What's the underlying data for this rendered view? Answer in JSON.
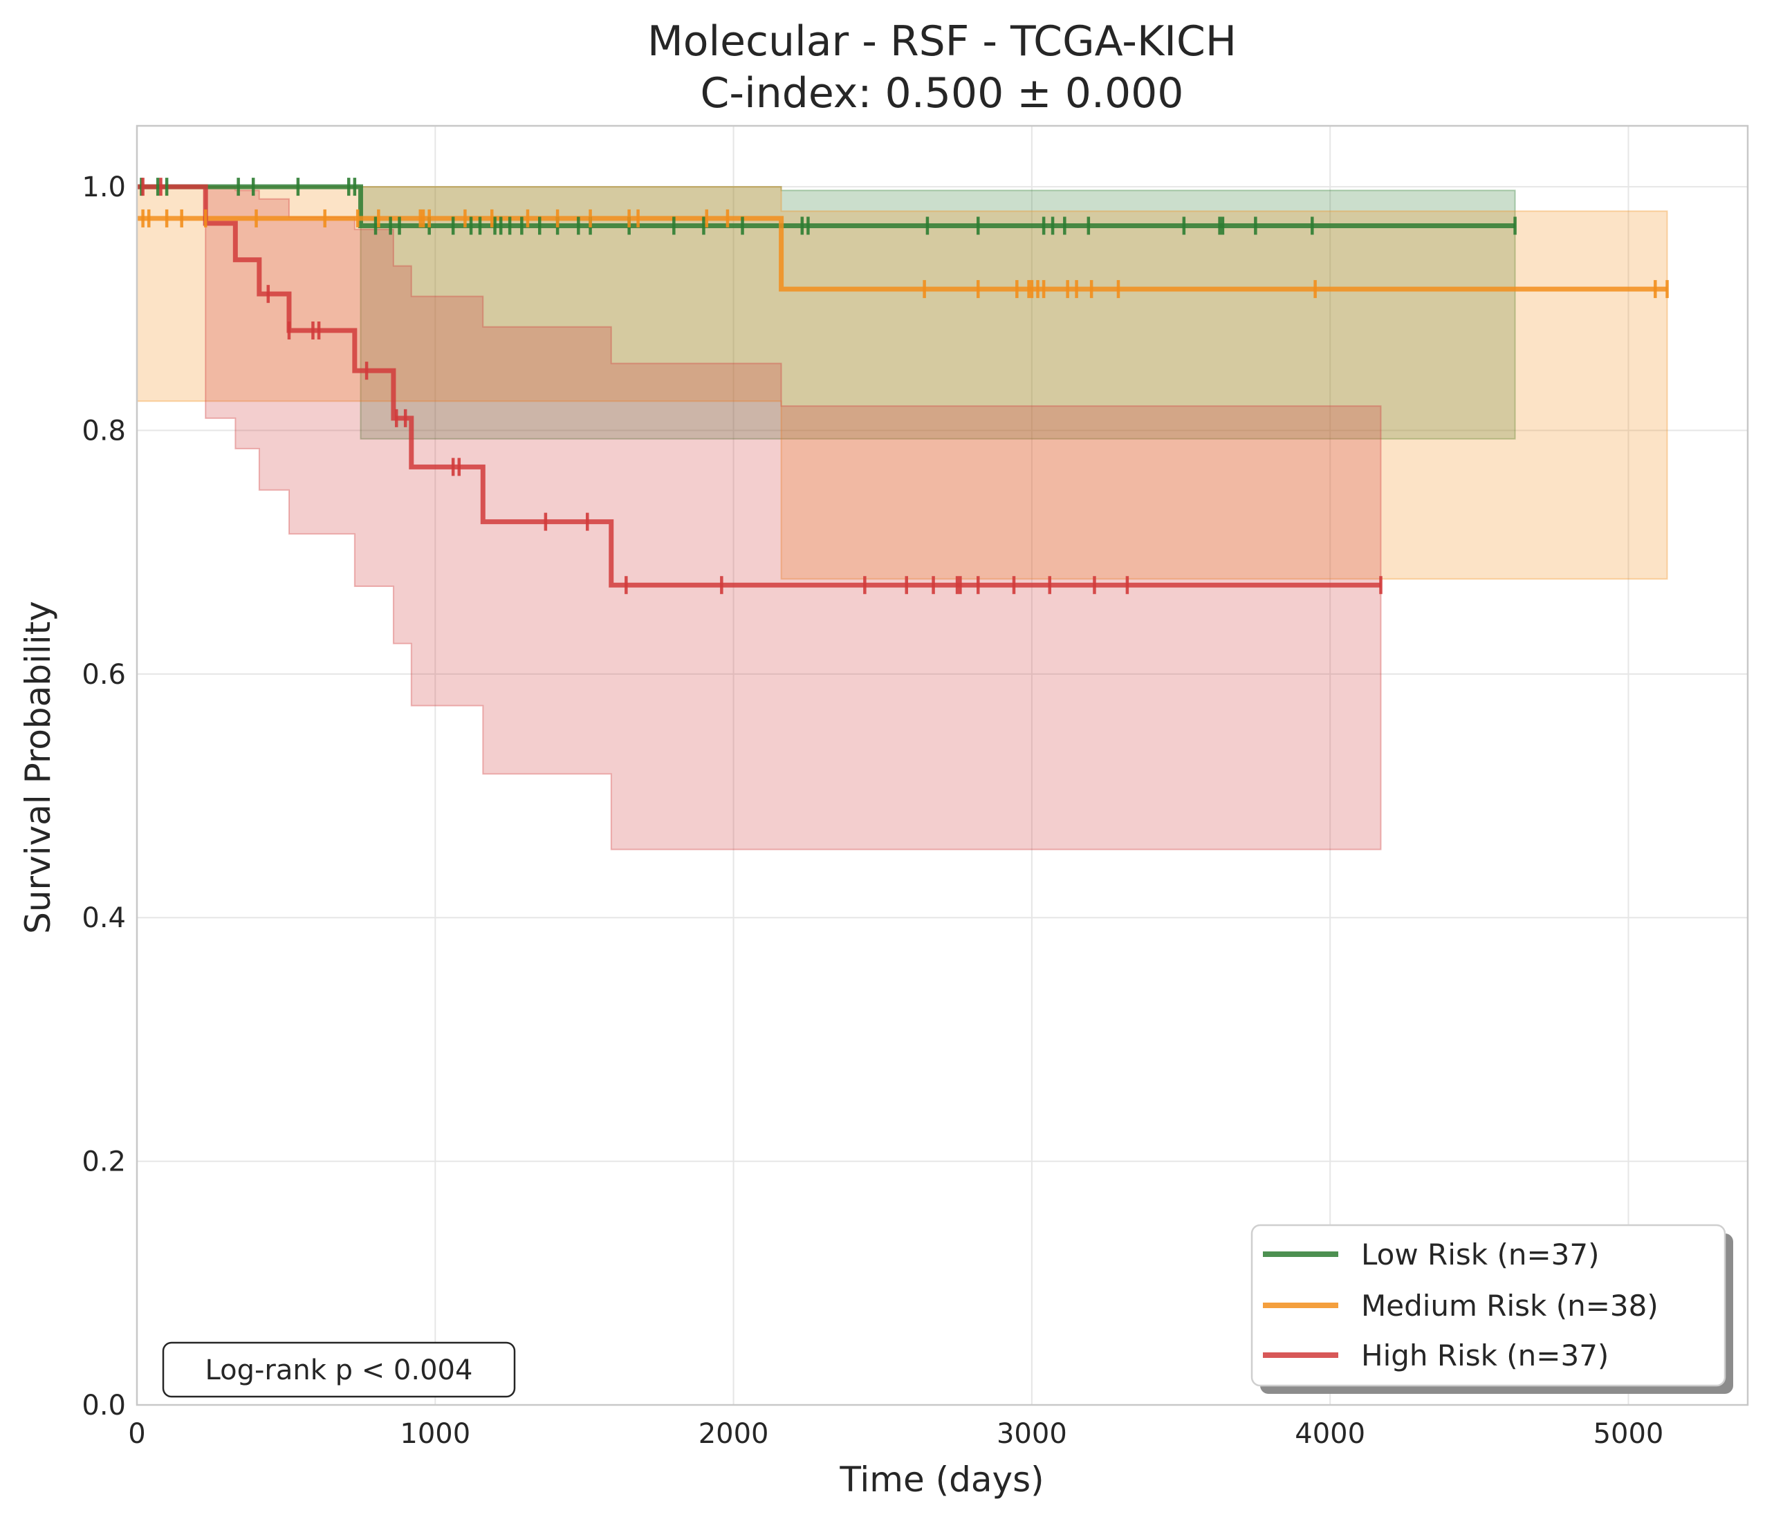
{
  "chart_data": {
    "type": "line",
    "title": "Molecular - RSF - TCGA-KICH",
    "subtitle": "C-index: 0.500 ± 0.000",
    "xlabel": "Time (days)",
    "ylabel": "Survival Probability",
    "xlim": [
      0,
      5400
    ],
    "ylim": [
      0,
      1.05
    ],
    "xticks": [
      0,
      1000,
      2000,
      3000,
      4000,
      5000
    ],
    "xtick_labels": [
      "0",
      "1000",
      "2000",
      "3000",
      "4000",
      "5000"
    ],
    "yticks": [
      0,
      0.2,
      0.4,
      0.6,
      0.8,
      1.0
    ],
    "ytick_labels": [
      "0.0",
      "0.2",
      "0.4",
      "0.6",
      "0.8",
      "1.0"
    ],
    "grid": true,
    "legend_position": "bottom-right",
    "annotation": "Log-rank p < 0.004",
    "series": [
      {
        "name": "Low Risk (n=37)",
        "color": "#2e7d32",
        "steps": [
          [
            0,
            1.0
          ],
          [
            750,
            1.0
          ],
          [
            750,
            0.968
          ],
          [
            4620,
            0.968
          ]
        ],
        "ci_upper": [
          [
            0,
            1.0
          ],
          [
            2160,
            1.0
          ],
          [
            2160,
            0.997
          ],
          [
            4620,
            0.997
          ]
        ],
        "ci_lower": [
          [
            0,
            1.0
          ],
          [
            750,
            1.0
          ],
          [
            750,
            0.793
          ],
          [
            4620,
            0.793
          ]
        ],
        "censor_x": [
          15,
          70,
          100,
          340,
          390,
          540,
          710,
          730,
          800,
          850,
          880,
          980,
          1060,
          1120,
          1150,
          1200,
          1220,
          1250,
          1290,
          1350,
          1410,
          1480,
          1520,
          1650,
          1800,
          1900,
          2030,
          2230,
          2250,
          2650,
          2820,
          3040,
          3070,
          3110,
          3190,
          3510,
          3630,
          3640,
          3750,
          3940,
          4620
        ]
      },
      {
        "name": "Medium Risk (n=38)",
        "color": "#f28e1c",
        "steps": [
          [
            0,
            0.974
          ],
          [
            2160,
            0.974
          ],
          [
            2160,
            0.916
          ],
          [
            5130,
            0.916
          ]
        ],
        "ci_upper": [
          [
            0,
            1.0
          ],
          [
            2160,
            1.0
          ],
          [
            2160,
            0.98
          ],
          [
            5130,
            0.98
          ]
        ],
        "ci_lower": [
          [
            0,
            0.824
          ],
          [
            2160,
            0.824
          ],
          [
            2160,
            0.678
          ],
          [
            5130,
            0.678
          ]
        ],
        "censor_x": [
          20,
          40,
          100,
          150,
          230,
          400,
          630,
          740,
          810,
          950,
          960,
          980,
          1100,
          1190,
          1310,
          1410,
          1520,
          1650,
          1680,
          1910,
          1980,
          2640,
          2820,
          2950,
          2990,
          3000,
          3020,
          3040,
          3120,
          3150,
          3200,
          3290,
          3950,
          5090,
          5130
        ]
      },
      {
        "name": "High Risk (n=37)",
        "color": "#d13b3b",
        "steps": [
          [
            0,
            1.0
          ],
          [
            230,
            1.0
          ],
          [
            230,
            0.97
          ],
          [
            330,
            0.97
          ],
          [
            330,
            0.94
          ],
          [
            410,
            0.94
          ],
          [
            410,
            0.912
          ],
          [
            510,
            0.912
          ],
          [
            510,
            0.882
          ],
          [
            730,
            0.882
          ],
          [
            730,
            0.849
          ],
          [
            860,
            0.849
          ],
          [
            860,
            0.81
          ],
          [
            920,
            0.81
          ],
          [
            920,
            0.77
          ],
          [
            1160,
            0.77
          ],
          [
            1160,
            0.725
          ],
          [
            1590,
            0.725
          ],
          [
            1590,
            0.673
          ],
          [
            4170,
            0.673
          ]
        ],
        "ci_upper": [
          [
            0,
            1.0
          ],
          [
            330,
            1.0
          ],
          [
            330,
            0.997
          ],
          [
            410,
            0.997
          ],
          [
            410,
            0.99
          ],
          [
            510,
            0.99
          ],
          [
            510,
            0.975
          ],
          [
            730,
            0.975
          ],
          [
            730,
            0.965
          ],
          [
            860,
            0.965
          ],
          [
            860,
            0.935
          ],
          [
            920,
            0.935
          ],
          [
            920,
            0.91
          ],
          [
            1160,
            0.91
          ],
          [
            1160,
            0.885
          ],
          [
            1590,
            0.885
          ],
          [
            1590,
            0.855
          ],
          [
            2160,
            0.855
          ],
          [
            2160,
            0.82
          ],
          [
            4170,
            0.82
          ]
        ],
        "ci_lower": [
          [
            0,
            1.0
          ],
          [
            230,
            1.0
          ],
          [
            230,
            0.81
          ],
          [
            330,
            0.81
          ],
          [
            330,
            0.785
          ],
          [
            410,
            0.785
          ],
          [
            410,
            0.751
          ],
          [
            510,
            0.751
          ],
          [
            510,
            0.715
          ],
          [
            730,
            0.715
          ],
          [
            730,
            0.672
          ],
          [
            860,
            0.672
          ],
          [
            860,
            0.625
          ],
          [
            920,
            0.625
          ],
          [
            920,
            0.574
          ],
          [
            1160,
            0.574
          ],
          [
            1160,
            0.518
          ],
          [
            1590,
            0.518
          ],
          [
            1590,
            0.456
          ],
          [
            4170,
            0.456
          ]
        ],
        "censor_x": [
          20,
          80,
          440,
          510,
          590,
          610,
          770,
          870,
          900,
          1060,
          1080,
          1370,
          1510,
          1640,
          1960,
          2440,
          2580,
          2670,
          2750,
          2760,
          2820,
          2940,
          3060,
          3210,
          3320,
          4170
        ]
      }
    ]
  }
}
